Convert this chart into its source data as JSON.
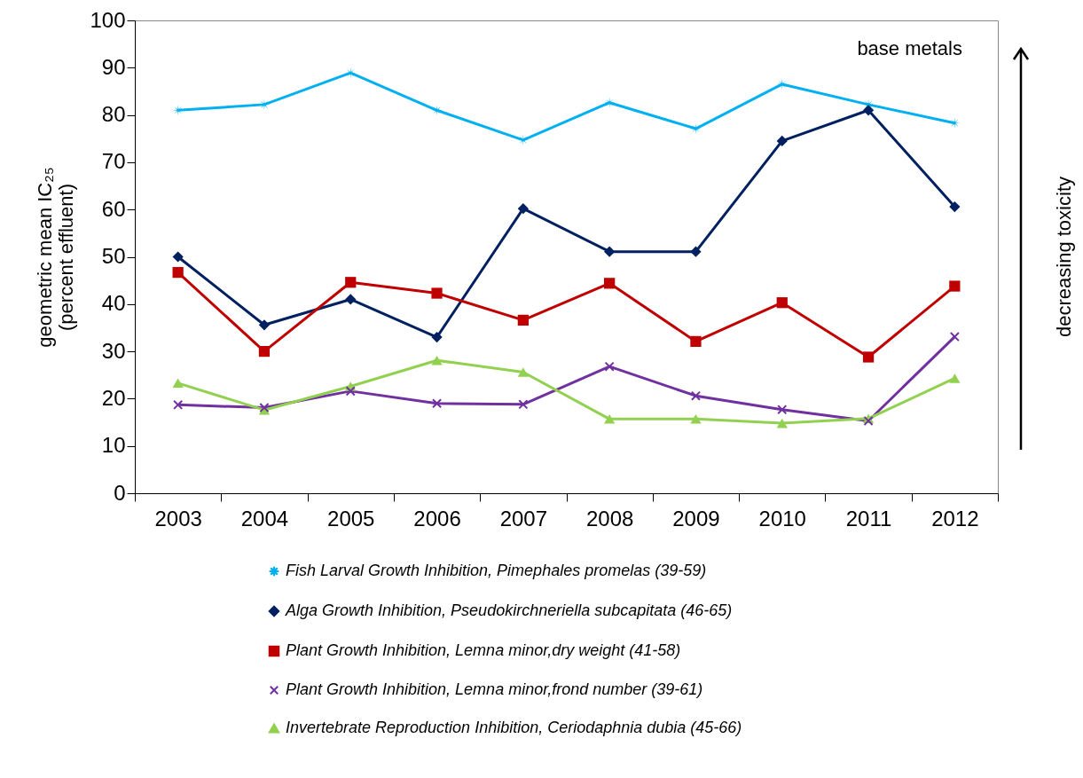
{
  "chart_data": {
    "type": "line",
    "ylabel": "geometric mean IC₂₅\n(percent effluent)",
    "categories": [
      "2003",
      "2004",
      "2005",
      "2006",
      "2007",
      "2008",
      "2009",
      "2010",
      "2011",
      "2012"
    ],
    "ylim": [
      0,
      100
    ],
    "yticks": [
      0,
      10,
      20,
      30,
      40,
      50,
      60,
      70,
      80,
      90,
      100
    ],
    "grid": false,
    "legend": "bottom",
    "annotations": [
      "base metals",
      "decreasing toxicity"
    ],
    "series": [
      {
        "name": "Fish Larval Growth Inhibition, Pimephales promelas (39-59)",
        "color": "#00b0f0",
        "marker": "star",
        "values": [
          81,
          82.2,
          88.9,
          81,
          74.7,
          82.6,
          77.1,
          86.5,
          82.2,
          78.3
        ]
      },
      {
        "name": "Alga Growth Inhibition, Pseudokirchneriella subcapitata (46-65)",
        "color": "#002060",
        "marker": "diamond",
        "values": [
          50,
          35.6,
          41,
          33,
          60.2,
          51.1,
          51.1,
          74.5,
          81,
          60.6
        ]
      },
      {
        "name": "Plant Growth Inhibition, Lemna minor,dry weight (41-58)",
        "color": "#c00000",
        "marker": "square",
        "values": [
          46.7,
          30,
          44.6,
          42.3,
          36.6,
          44.4,
          32.1,
          40.3,
          28.8,
          43.8
        ]
      },
      {
        "name": "Plant Growth Inhibition, Lemna minor,frond number (39-61)",
        "color": "#7030a0",
        "marker": "cross",
        "values": [
          18.7,
          18.1,
          21.6,
          19,
          18.8,
          26.8,
          20.6,
          17.7,
          15.3,
          33.1
        ]
      },
      {
        "name": "Invertebrate Reproduction Inhibition, Ceriodaphnia dubia (45-66)",
        "color": "#92d050",
        "marker": "triangle",
        "values": [
          23.3,
          17.6,
          22.6,
          28.1,
          25.6,
          15.7,
          15.7,
          14.8,
          15.8,
          24.3
        ]
      }
    ]
  }
}
